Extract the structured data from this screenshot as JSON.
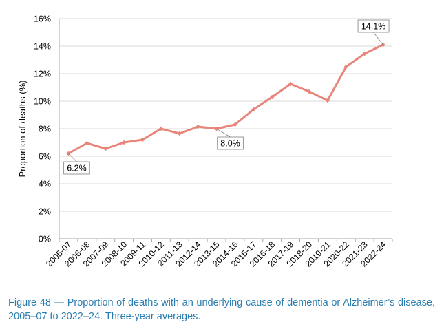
{
  "chart_data": {
    "type": "line",
    "title": "",
    "xlabel": "",
    "ylabel": "Proportion of deaths (%)",
    "categories": [
      "2005-07",
      "2006-08",
      "2007-09",
      "2008-10",
      "2009-11",
      "2010-12",
      "2011-13",
      "2012-14",
      "2013-15",
      "2014-16",
      "2015-17",
      "2016-18",
      "2017-19",
      "2018-20",
      "2019-21",
      "2020-22",
      "2021-23",
      "2022-24"
    ],
    "series": [
      {
        "name": "Proportion of deaths",
        "values": [
          6.2,
          6.95,
          6.55,
          7.0,
          7.2,
          8.0,
          7.65,
          8.15,
          8.0,
          8.3,
          9.4,
          10.3,
          11.25,
          10.7,
          10.05,
          12.5,
          13.45,
          14.1
        ],
        "color": "#e8857a"
      }
    ],
    "ylim": [
      0,
      16
    ],
    "yticks": [
      0,
      2,
      4,
      6,
      8,
      10,
      12,
      14,
      16
    ],
    "ytick_labels": [
      "0%",
      "2%",
      "4%",
      "6%",
      "8%",
      "10%",
      "12%",
      "14%",
      "16%"
    ],
    "grid": true,
    "annotations": [
      {
        "index": 0,
        "text": "6.2%"
      },
      {
        "index": 8,
        "text": "8.0%"
      },
      {
        "index": 17,
        "text": "14.1%"
      }
    ]
  },
  "caption": "Figure 48 — Proportion of deaths with an underlying cause of dementia or Alzheimer’s disease, 2005–07 to 2022–24.  Three-year averages."
}
